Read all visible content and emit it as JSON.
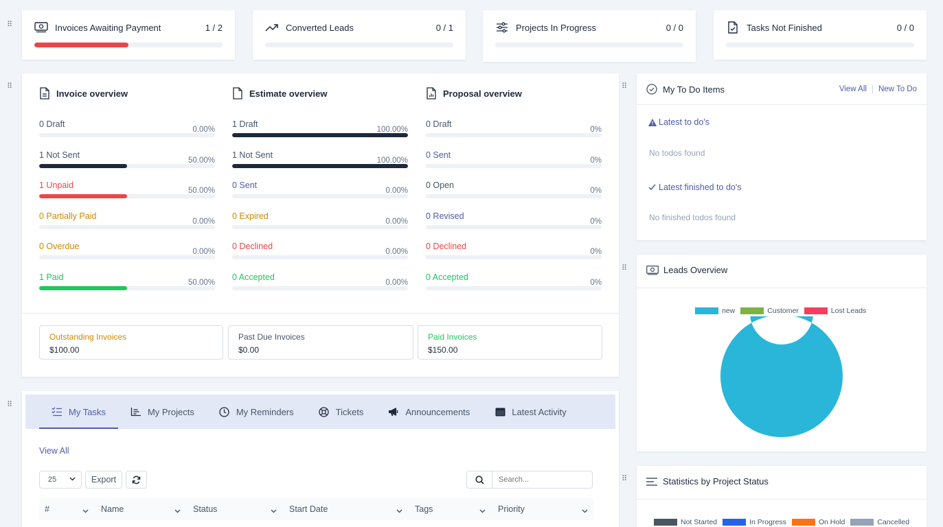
{
  "stats": [
    {
      "title": "Invoices Awaiting Payment",
      "count": "1 / 2",
      "icon": "money-icon",
      "progress": 0.5,
      "color": "#ef4444"
    },
    {
      "title": "Converted Leads",
      "count": "0 / 1",
      "icon": "trending-up-icon",
      "progress": 0,
      "color": "#4f5ba8"
    },
    {
      "title": "Projects In Progress",
      "count": "0 / 0",
      "icon": "sliders-icon",
      "progress": 0,
      "color": "#4f5ba8"
    },
    {
      "title": "Tasks Not Finished",
      "count": "0 / 0",
      "icon": "file-check-icon",
      "progress": 0,
      "color": "#4f5ba8"
    }
  ],
  "overview": {
    "invoice": {
      "title": "Invoice overview",
      "rows": [
        {
          "label": "0 Draft",
          "pct": "0.00%",
          "fill": 0,
          "tone": "gray",
          "bar": "#1e293b"
        },
        {
          "label": "1 Not Sent",
          "pct": "50.00%",
          "fill": 0.5,
          "tone": "dark",
          "bar": "#1e293b"
        },
        {
          "label": "1 Unpaid",
          "pct": "50.00%",
          "fill": 0.5,
          "tone": "red",
          "bar": "#ef4444"
        },
        {
          "label": "0 Partially Paid",
          "pct": "0.00%",
          "fill": 0,
          "tone": "amber",
          "bar": "#ca8a04"
        },
        {
          "label": "0 Overdue",
          "pct": "0.00%",
          "fill": 0,
          "tone": "amber",
          "bar": "#ca8a04"
        },
        {
          "label": "1 Paid",
          "pct": "50.00%",
          "fill": 0.5,
          "tone": "green",
          "bar": "#22c55e"
        }
      ]
    },
    "estimate": {
      "title": "Estimate overview",
      "rows": [
        {
          "label": "1 Draft",
          "pct": "100.00%",
          "fill": 1,
          "tone": "gray",
          "bar": "#1e293b"
        },
        {
          "label": "1 Not Sent",
          "pct": "100.00%",
          "fill": 1,
          "tone": "dark",
          "bar": "#1e293b"
        },
        {
          "label": "0 Sent",
          "pct": "0.00%",
          "fill": 0,
          "tone": "blue",
          "bar": "#4f5ba8"
        },
        {
          "label": "0 Expired",
          "pct": "0.00%",
          "fill": 0,
          "tone": "amber",
          "bar": "#ca8a04"
        },
        {
          "label": "0 Declined",
          "pct": "0.00%",
          "fill": 0,
          "tone": "red",
          "bar": "#ef4444"
        },
        {
          "label": "0 Accepted",
          "pct": "0.00%",
          "fill": 0,
          "tone": "green",
          "bar": "#22c55e"
        }
      ]
    },
    "proposal": {
      "title": "Proposal overview",
      "rows": [
        {
          "label": "0 Draft",
          "pct": "0%",
          "fill": 0,
          "tone": "gray",
          "bar": "#1e293b"
        },
        {
          "label": "0 Sent",
          "pct": "0%",
          "fill": 0,
          "tone": "blue",
          "bar": "#4f5ba8"
        },
        {
          "label": "0 Open",
          "pct": "0%",
          "fill": 0,
          "tone": "gray",
          "bar": "#1e293b"
        },
        {
          "label": "0 Revised",
          "pct": "0%",
          "fill": 0,
          "tone": "blue",
          "bar": "#4f5ba8"
        },
        {
          "label": "0 Declined",
          "pct": "0%",
          "fill": 0,
          "tone": "red",
          "bar": "#ef4444"
        },
        {
          "label": "0 Accepted",
          "pct": "0%",
          "fill": 0,
          "tone": "green",
          "bar": "#22c55e"
        }
      ]
    },
    "summary": [
      {
        "label": "Outstanding Invoices",
        "value": "$100.00",
        "tone": "amber"
      },
      {
        "label": "Past Due Invoices",
        "value": "$0.00",
        "tone": "gray"
      },
      {
        "label": "Paid Invoices",
        "value": "$150.00",
        "tone": "green"
      }
    ]
  },
  "todo": {
    "title": "My To Do Items",
    "view_all": "View All",
    "new_todo": "New To Do",
    "latest_title": "Latest to do's",
    "latest_empty": "No todos found",
    "finished_title": "Latest finished to do's",
    "finished_empty": "No finished todos found"
  },
  "leads": {
    "title": "Leads Overview",
    "chart_data": {
      "type": "pie",
      "labels": [
        "new",
        "Customer",
        "Lost Leads"
      ],
      "values": [
        1,
        0,
        0
      ],
      "colors": [
        "#29b6d9",
        "#7cb342",
        "#f43f5e"
      ],
      "legend": "top"
    }
  },
  "project_stats": {
    "title": "Statistics by Project Status",
    "legend": [
      {
        "label": "Not Started",
        "color": "#4b5563"
      },
      {
        "label": "In Progress",
        "color": "#2563eb"
      },
      {
        "label": "On Hold",
        "color": "#f97316"
      },
      {
        "label": "Cancelled",
        "color": "#94a3b8"
      }
    ]
  },
  "tabs": [
    {
      "label": "My Tasks",
      "icon": "task-list-icon",
      "active": true
    },
    {
      "label": "My Projects",
      "icon": "bar-chart-icon",
      "active": false
    },
    {
      "label": "My Reminders",
      "icon": "clock-icon",
      "active": false
    },
    {
      "label": "Tickets",
      "icon": "lifebuoy-icon",
      "active": false
    },
    {
      "label": "Announcements",
      "icon": "megaphone-icon",
      "active": false
    },
    {
      "label": "Latest Activity",
      "icon": "window-icon",
      "active": false
    }
  ],
  "tasks": {
    "view_all": "View All",
    "page_size": "25",
    "export": "Export",
    "search_placeholder": "Search...",
    "columns": [
      "#",
      "Name",
      "Status",
      "Start Date",
      "Tags",
      "Priority"
    ]
  }
}
